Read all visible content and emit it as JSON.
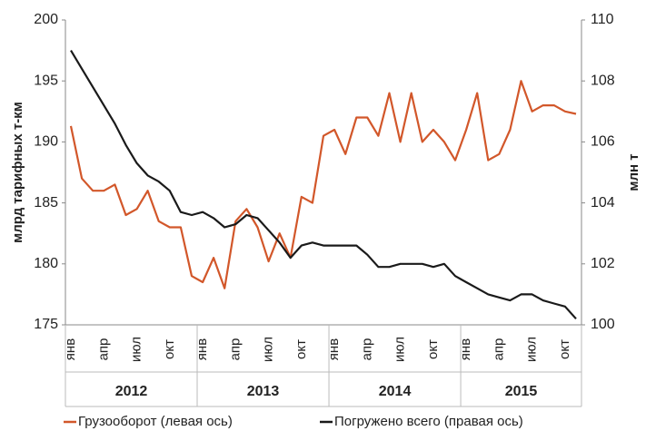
{
  "chart_data": {
    "type": "line",
    "categories": [
      "янв",
      null,
      null,
      "апр",
      null,
      null,
      "июл",
      null,
      null,
      "окт",
      null,
      null,
      "янв",
      null,
      null,
      "апр",
      null,
      null,
      "июл",
      null,
      null,
      "окт",
      null,
      null,
      "янв",
      null,
      null,
      "апр",
      null,
      null,
      "июл",
      null,
      null,
      "окт",
      null,
      null,
      "янв",
      null,
      null,
      "апр",
      null,
      null,
      "июл",
      null,
      null,
      "окт",
      null
    ],
    "years": [
      "2012",
      "2013",
      "2014",
      "2015"
    ],
    "ylabel": "млрд тарифных т-км",
    "y2label": "млн т",
    "ylim": [
      175,
      200
    ],
    "yticks": [
      175,
      180,
      185,
      190,
      195,
      200
    ],
    "y2lim": [
      100,
      110
    ],
    "y2ticks": [
      100,
      102,
      104,
      106,
      108,
      110
    ],
    "series": [
      {
        "name": "Грузооборот (левая ось)",
        "color": "#d2572a",
        "values": [
          191.3,
          187,
          186,
          186,
          186.5,
          184,
          184.5,
          186,
          183.5,
          183,
          183,
          179,
          178.5,
          180.5,
          178,
          183.5,
          184.5,
          183,
          180.2,
          182.5,
          180.5,
          185.5,
          185,
          190.5,
          191,
          189,
          192,
          192,
          190.5,
          194,
          190,
          194,
          190,
          191,
          190,
          188.5,
          191,
          194,
          188.5,
          189,
          191,
          195,
          192.5,
          193,
          193,
          192.5,
          192.3
        ]
      },
      {
        "name": "Погружено всего (правая ось)",
        "color": "#1a1a1a",
        "axis": "y2",
        "values": [
          109,
          108.4,
          107.8,
          107.2,
          106.6,
          105.9,
          105.3,
          104.9,
          104.7,
          104.4,
          103.7,
          103.6,
          103.7,
          103.5,
          103.2,
          103.3,
          103.6,
          103.5,
          103.1,
          102.7,
          102.2,
          102.6,
          102.7,
          102.6,
          102.6,
          102.6,
          102.6,
          102.3,
          101.9,
          101.9,
          102.0,
          102.0,
          102.0,
          101.9,
          102.0,
          101.6,
          101.4,
          101.2,
          101.0,
          100.9,
          100.8,
          101.0,
          101.0,
          100.8,
          100.7,
          100.6,
          100.2
        ]
      }
    ]
  }
}
